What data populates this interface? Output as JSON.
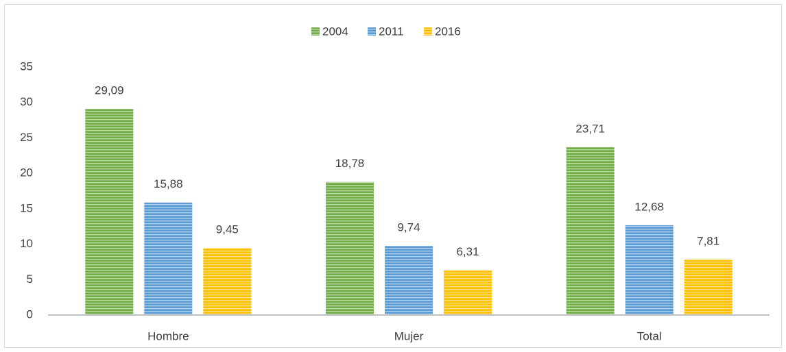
{
  "chart_data": {
    "type": "bar",
    "categories": [
      "Hombre",
      "Mujer",
      "Total"
    ],
    "series": [
      {
        "name": "2004",
        "color": "#70ad47",
        "values": [
          29.09,
          18.78,
          23.71
        ],
        "value_labels": [
          "29,09",
          "18,78",
          "23,71"
        ]
      },
      {
        "name": "2011",
        "color": "#5b9bd5",
        "values": [
          15.88,
          9.74,
          12.68
        ],
        "value_labels": [
          "15,88",
          "9,74",
          "12,68"
        ]
      },
      {
        "name": "2016",
        "color": "#ffc000",
        "values": [
          9.45,
          6.31,
          7.81
        ],
        "value_labels": [
          "9,45",
          "6,31",
          "7,81"
        ]
      }
    ],
    "ylim": [
      0,
      35
    ],
    "yticks": [
      0,
      5,
      10,
      15,
      20,
      25,
      30,
      35
    ],
    "grid": false,
    "legend": "top"
  }
}
